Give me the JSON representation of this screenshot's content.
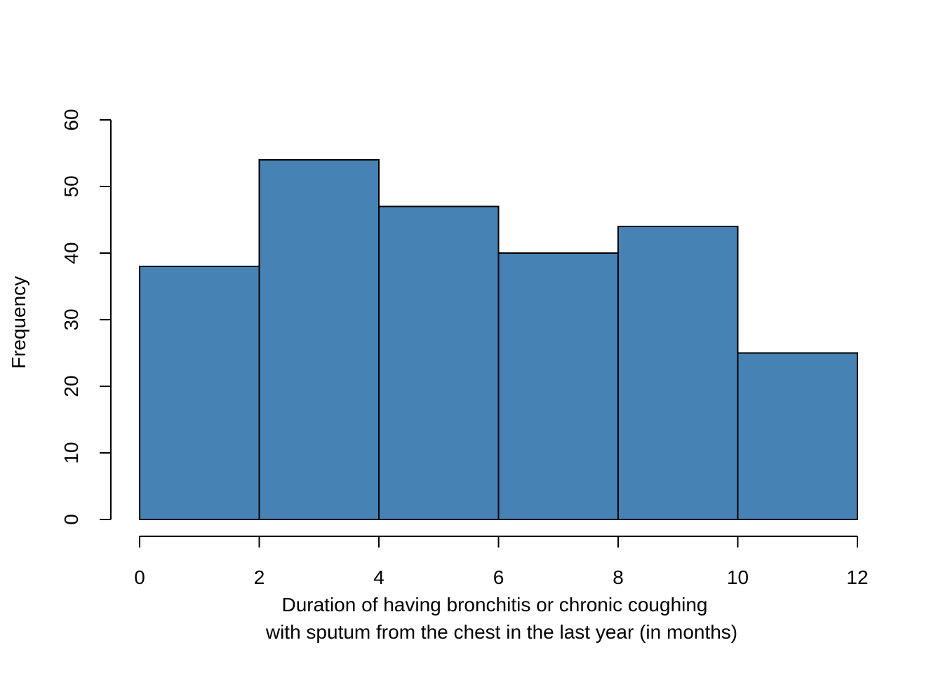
{
  "chart_data": {
    "type": "bar",
    "subtype": "histogram",
    "title": "",
    "xlabel_lines": [
      "Duration of having bronchitis or chronic coughing",
      "with sputum from the chest in the last year (in months)"
    ],
    "ylabel": "Frequency",
    "bin_edges": [
      0,
      2,
      4,
      6,
      8,
      10,
      12
    ],
    "values": [
      38,
      54,
      47,
      40,
      44,
      25
    ],
    "xlim": [
      0,
      12
    ],
    "ylim": [
      0,
      60
    ],
    "x_ticks": [
      "0",
      "2",
      "4",
      "6",
      "8",
      "10",
      "12"
    ],
    "y_ticks": [
      "0",
      "10",
      "20",
      "30",
      "40",
      "50",
      "60"
    ],
    "bar_color": "#4682b4",
    "grid": false,
    "legend": "none"
  }
}
